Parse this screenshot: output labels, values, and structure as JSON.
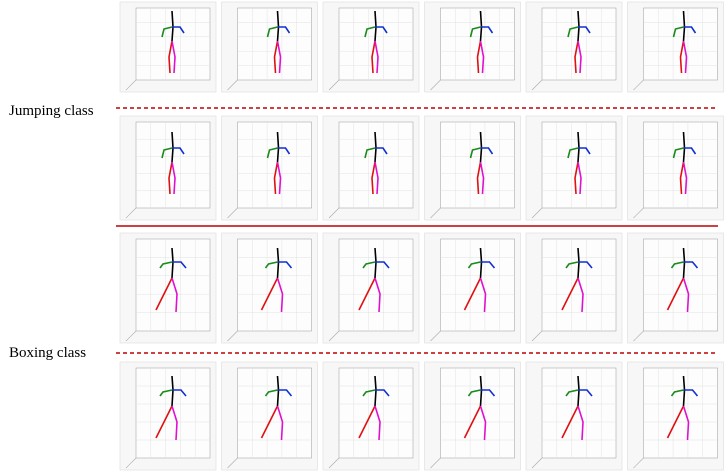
{
  "classes": [
    {
      "label": "Jumping class"
    },
    {
      "label": "Boxing class"
    }
  ]
}
